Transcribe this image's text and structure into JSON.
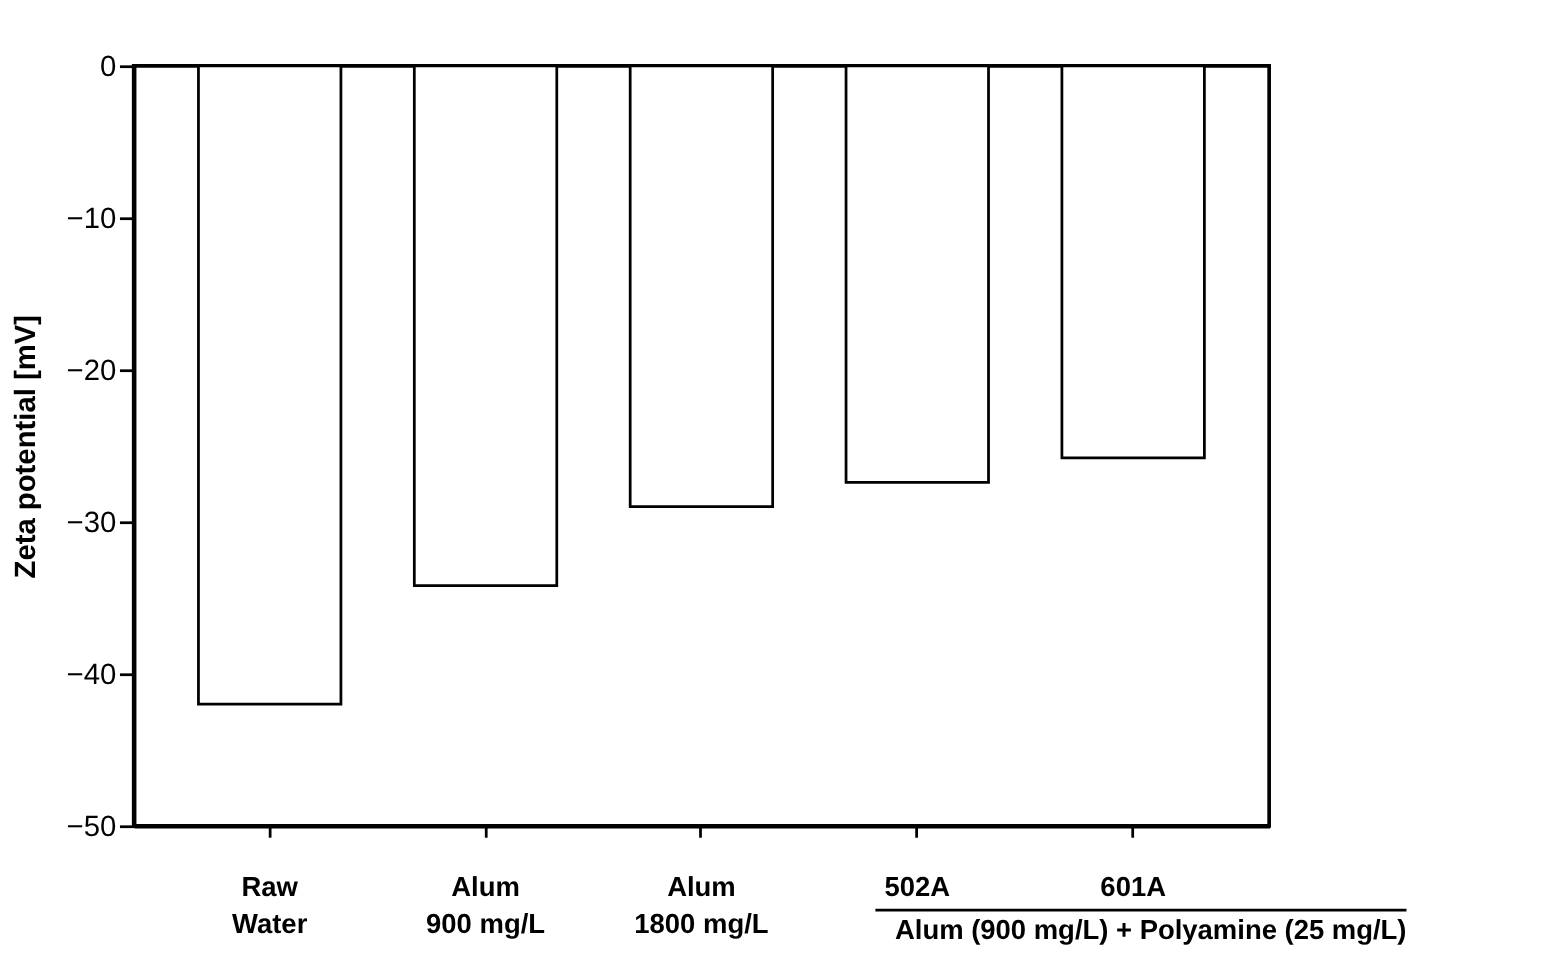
{
  "chart_data": {
    "type": "bar",
    "ylabel": "Zeta potential [mV]",
    "categories": [
      "Raw\nWater",
      "Alum\n900 mg/L",
      "Alum\n1800 mg/L",
      "502A",
      "601A"
    ],
    "values": [
      -42,
      -34.2,
      -29,
      -27.4,
      -25.8
    ],
    "color": "#ffffff",
    "ylim": [
      -50,
      0
    ],
    "yticks": [
      -50,
      -40,
      -30,
      -20,
      -10,
      0
    ],
    "grid": false,
    "annotations": [
      "Alum (900 mg/L) + Polyamine (25 mg/L)"
    ]
  }
}
